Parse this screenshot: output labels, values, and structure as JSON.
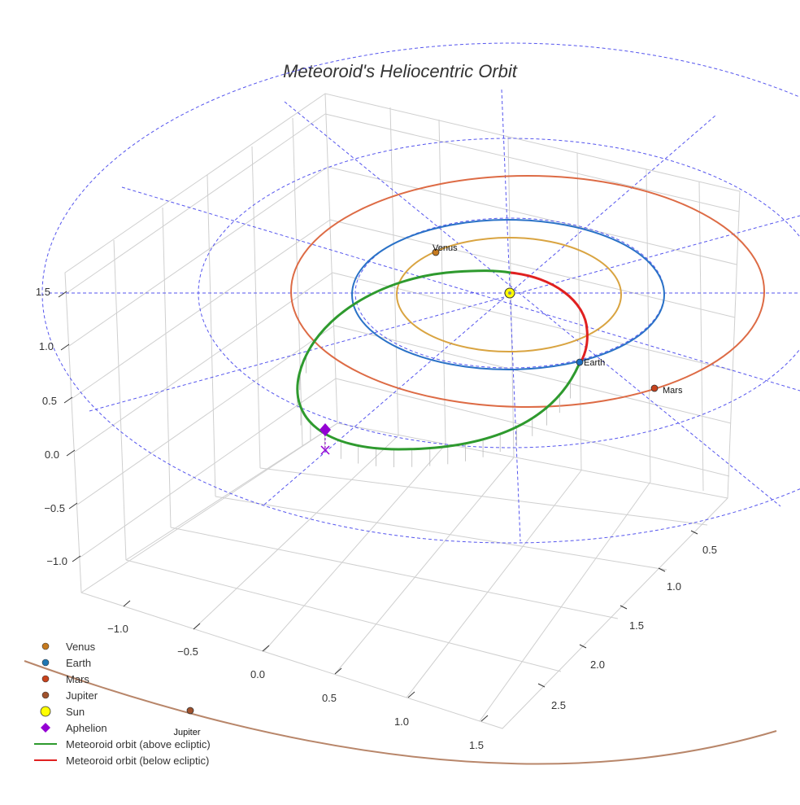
{
  "chart_data": {
    "type": "scatter-3d",
    "title": "Meteoroid's Heliocentric Orbit",
    "axes": {
      "x": {
        "ticks": [
          "−1.0",
          "−0.5",
          "0.0",
          "0.5",
          "1.0",
          "1.5"
        ]
      },
      "y": {
        "ticks": [
          "0.5",
          "1.0",
          "1.5",
          "2.0",
          "2.5"
        ]
      },
      "z": {
        "ticks": [
          "1.5",
          "1.0",
          "0.5",
          "0.0",
          "−0.5",
          "−1.0"
        ]
      }
    },
    "bodies": [
      {
        "name": "Venus",
        "label": "Venus",
        "color": "#c67a1e"
      },
      {
        "name": "Earth",
        "label": "Earth",
        "color": "#1f6fc0"
      },
      {
        "name": "Mars",
        "label": "Mars",
        "color": "#c8421c"
      },
      {
        "name": "Jupiter",
        "label": "Jupiter",
        "color": "#a0522d"
      }
    ],
    "orbits": [
      {
        "name": "Venus orbit",
        "radius_au": 0.72,
        "color": "#d9a441"
      },
      {
        "name": "Earth orbit",
        "radius_au": 1.0,
        "color": "#2a72c7"
      },
      {
        "name": "Mars orbit",
        "radius_au": 1.52,
        "color": "#dd6b45"
      },
      {
        "name": "Jupiter orbit",
        "radius_au": 5.2,
        "color": "#b8866a"
      }
    ],
    "sun": {
      "label": "Sun",
      "color": "#ffff00"
    },
    "aphelion": {
      "label": "Aphelion",
      "color": "#9400d3"
    },
    "meteoroid": {
      "above_color": "#2e9a2e",
      "below_color": "#e02020",
      "above_label": "Meteoroid orbit (above ecliptic)",
      "below_label": "Meteoroid orbit (below ecliptic)"
    },
    "reference_grid_color": "#5555ee",
    "legend": [
      {
        "label": "Venus",
        "marker": "dot",
        "color": "#c67a1e"
      },
      {
        "label": "Earth",
        "marker": "dot",
        "color": "#1f77b4"
      },
      {
        "label": "Mars",
        "marker": "dot",
        "color": "#c8421c"
      },
      {
        "label": "Jupiter",
        "marker": "dot",
        "color": "#a0522d"
      },
      {
        "label": "Sun",
        "marker": "sun",
        "color": "#ffff00"
      },
      {
        "label": "Aphelion",
        "marker": "diamond",
        "color": "#9400d3"
      },
      {
        "label": "Meteoroid orbit (above ecliptic)",
        "marker": "line",
        "color": "#2e9a2e"
      },
      {
        "label": "Meteoroid orbit (below ecliptic)",
        "marker": "line",
        "color": "#e02020"
      }
    ],
    "legend_placement": "lower-left"
  }
}
